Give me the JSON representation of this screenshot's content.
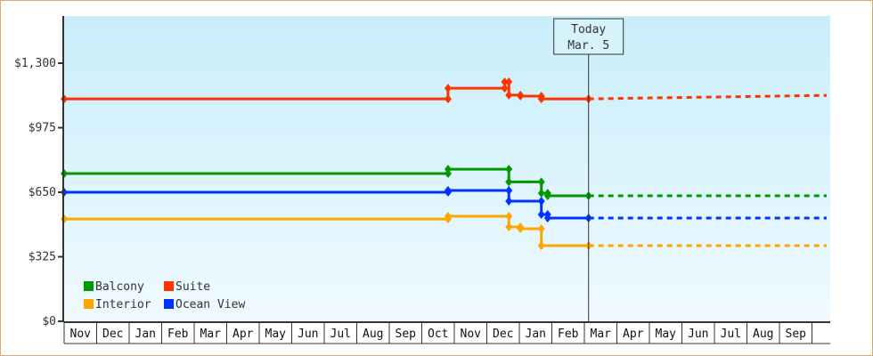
{
  "chart_data": {
    "type": "line",
    "title": "",
    "xlabel": "",
    "ylabel": "",
    "ylim": [
      0,
      1300
    ],
    "y_ticks": [
      "$0",
      "$325",
      "$650",
      "$975",
      "$1,300"
    ],
    "y_tick_values": [
      0,
      325,
      650,
      975,
      1300
    ],
    "x_range": [
      "2013-11-01",
      "2015-10-15"
    ],
    "x_tick_labels": [
      "Nov",
      "Dec",
      "Jan",
      "Feb",
      "Mar",
      "Apr",
      "May",
      "Jun",
      "Jul",
      "Aug",
      "Sep",
      "Oct",
      "Nov",
      "Dec",
      "Jan",
      "Feb",
      "Mar",
      "Apr",
      "May",
      "Jun",
      "Jul",
      "Aug",
      "Sep"
    ],
    "grid": false,
    "legend_position": "bottom-left",
    "today": {
      "line1": "Today",
      "line2": "Mar. 5",
      "date": "2015-03-05"
    },
    "series": [
      {
        "name": "Balcony",
        "color": "#009900",
        "points": [
          [
            "2013-11-01",
            744
          ],
          [
            "2014-10-26",
            744
          ],
          [
            "2014-10-26",
            766
          ],
          [
            "2014-12-22",
            766
          ],
          [
            "2014-12-22",
            702
          ],
          [
            "2015-01-22",
            702
          ],
          [
            "2015-01-22",
            645
          ],
          [
            "2015-01-28",
            645
          ],
          [
            "2015-01-28",
            632
          ],
          [
            "2015-03-05",
            632
          ]
        ],
        "forecast": [
          [
            "2015-03-05",
            632
          ],
          [
            "2015-10-15",
            632
          ]
        ]
      },
      {
        "name": "Suite",
        "color": "#ff3300",
        "points": [
          [
            "2013-11-01",
            1120
          ],
          [
            "2014-10-26",
            1120
          ],
          [
            "2014-10-26",
            1174
          ],
          [
            "2014-12-18",
            1174
          ],
          [
            "2014-12-18",
            1206
          ],
          [
            "2014-12-22",
            1206
          ],
          [
            "2014-12-22",
            1139
          ],
          [
            "2015-01-02",
            1139
          ],
          [
            "2015-01-02",
            1134
          ],
          [
            "2015-01-22",
            1134
          ],
          [
            "2015-01-22",
            1120
          ],
          [
            "2015-03-05",
            1120
          ]
        ],
        "forecast": [
          [
            "2015-03-05",
            1120
          ],
          [
            "2015-05-01",
            1125
          ],
          [
            "2015-08-01",
            1132
          ],
          [
            "2015-10-15",
            1138
          ]
        ]
      },
      {
        "name": "Interior",
        "color": "#ffa500",
        "points": [
          [
            "2013-11-01",
            515
          ],
          [
            "2014-10-26",
            515
          ],
          [
            "2014-10-26",
            529
          ],
          [
            "2014-12-22",
            529
          ],
          [
            "2014-12-22",
            475
          ],
          [
            "2015-01-02",
            475
          ],
          [
            "2015-01-02",
            466
          ],
          [
            "2015-01-22",
            466
          ],
          [
            "2015-01-22",
            381
          ],
          [
            "2015-03-05",
            381
          ]
        ],
        "forecast": [
          [
            "2015-03-05",
            381
          ],
          [
            "2015-10-15",
            381
          ]
        ]
      },
      {
        "name": "Ocean View",
        "color": "#0033ff",
        "points": [
          [
            "2013-11-01",
            650
          ],
          [
            "2014-10-26",
            650
          ],
          [
            "2014-10-26",
            659
          ],
          [
            "2014-12-22",
            659
          ],
          [
            "2014-12-22",
            605
          ],
          [
            "2015-01-22",
            605
          ],
          [
            "2015-01-22",
            538
          ],
          [
            "2015-01-28",
            538
          ],
          [
            "2015-01-28",
            520
          ],
          [
            "2015-03-05",
            520
          ]
        ],
        "forecast": [
          [
            "2015-03-05",
            520
          ],
          [
            "2015-10-15",
            520
          ]
        ]
      }
    ]
  }
}
